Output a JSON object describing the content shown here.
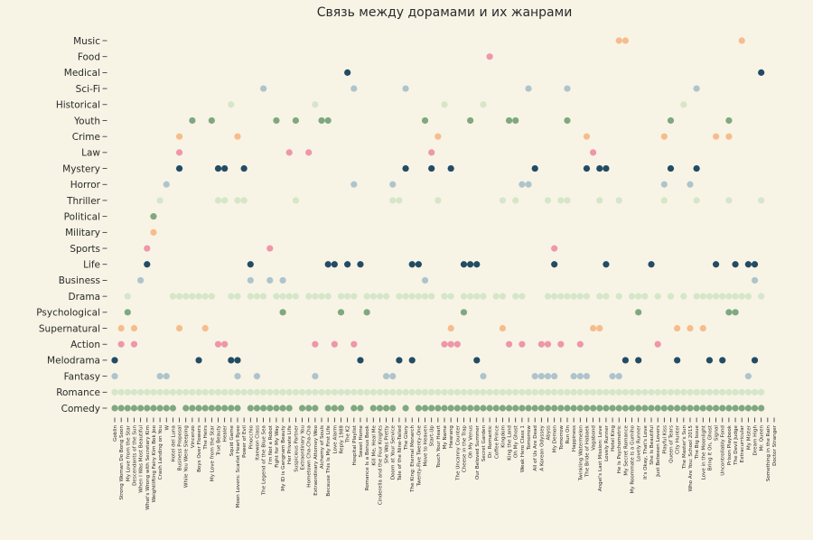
{
  "chart_data": {
    "type": "scatter",
    "title": "Связь между дорамами и их жанрами",
    "xlabel": "",
    "ylabel": "",
    "genres": [
      "Music",
      "Food",
      "Medical",
      "Sci-Fi",
      "Historical",
      "Youth",
      "Crime",
      "Law",
      "Mystery",
      "Horror",
      "Thriller",
      "Political",
      "Military",
      "Sports",
      "Life",
      "Business",
      "Drama",
      "Psychological",
      "Supernatural",
      "Action",
      "Melodrama",
      "Fantasy",
      "Romance",
      "Comedy"
    ],
    "colors": {
      "Music": "#f7bc8d",
      "Food": "#ef96a8",
      "Medical": "#234b64",
      "Sci-Fi": "#aec4cd",
      "Historical": "#d5e6c9",
      "Youth": "#80a880",
      "Crime": "#f7bc8d",
      "Law": "#ef96a8",
      "Mystery": "#234b64",
      "Horror": "#aec4cd",
      "Thriller": "#d5e6c9",
      "Political": "#80a880",
      "Military": "#f7bc8d",
      "Sports": "#ef96a8",
      "Life": "#234b64",
      "Business": "#aec4cd",
      "Drama": "#d5e6c9",
      "Psychological": "#80a880",
      "Supernatural": "#f7bc8d",
      "Action": "#ef96a8",
      "Melodrama": "#234b64",
      "Fantasy": "#aec4cd",
      "Romance": "#d5e6c9",
      "Comedy": "#80a880"
    },
    "dramas": [
      "Goblin",
      "Strong Woman Do Bong Soon",
      "My Love from the Star",
      "Descendants of the Sun",
      "When I Was Most Beautiful",
      "What's Wrong with Secretary Kim",
      "Weightlifting Fairy Kim Bok Joo",
      "Crash Landing on You",
      "W",
      "Hotel del Luna",
      "Business Proposal",
      "While You Were Sleeping",
      "Vincenzo",
      "Boys Over Flowers",
      "The Heirs",
      "My Love from the Star",
      "True Beauty",
      "Healer",
      "Squid Game",
      "Moon Lovers: Scarlet Heart Ryeo",
      "Power of Evil",
      "Pinocchio",
      "Itaewon Class",
      "The Legend of the Blue Sea",
      "I'm Not a Robot",
      "Fight for My Way",
      "My ID is Gangnam Beauty",
      "Her Private Life",
      "Suspicious Partner",
      "Extraordinary You",
      "Hometown Cha-Cha-Cha",
      "Extraordinary Attorney Woo",
      "Alchemy of Souls",
      "Because This Is My First Life",
      "Love Alarm",
      "Reply 1988",
      "The K2",
      "Hospital Playlist",
      "Sweet Home",
      "Romance Is a Bonus Book",
      "Kill Me, Heal Me",
      "Cinderella and the Four Knights",
      "She Was Pretty",
      "Doom at Your Service",
      "Tale of the Nine-Tailed",
      "The Glory",
      "The King: Eternal Monarch",
      "Twenty-Five Twenty-One",
      "Move to Heaven",
      "Start-Up",
      "Touch Your Heart",
      "My Name",
      "Hwarang",
      "The Uncanny Counter",
      "Cheese in the Trap",
      "Oh My Venus",
      "Our Beloved Summer",
      "Secret Garden",
      "Dr. Romantic",
      "Coffee Prince",
      "Kingdom",
      "King the Land",
      "Oh My Ghost",
      "Weak Hero Class 1",
      "Tomorrow",
      "All of Us Are Dead",
      "A Korean Odyssey",
      "Abyss",
      "My Demon",
      "Tomorrow",
      "Run On",
      "Happiness",
      "Twinkling Watermelon",
      "The Bride of Habaek",
      "Vagabond",
      "Angel's Last Mission: Love",
      "Lovely Runner",
      "Hotel King",
      "He Is Psychometric",
      "My Secret Romance",
      "My Roommate Is a Gumiho",
      "Lovely Runner",
      "It's Okay, That's Love",
      "She Is Beautiful",
      "Just Between Lovers",
      "Playful Kiss",
      "Queen of Tears",
      "City Hunter",
      "The Master's Sun",
      "Who Are You: School 2015",
      "The Big Issue",
      "Love in the Moonlight",
      "Bring It On, Ghost",
      "Signal",
      "Uncontrollably Fond",
      "Prison Playbook",
      "The Devil Judge",
      "Extracurricular",
      "My Mister",
      "Dream High",
      "Mr. Queen",
      "Something in the Rain",
      "Doctor Stranger"
    ],
    "points": {
      "Music": [
        78,
        79,
        97
      ],
      "Food": [
        58
      ],
      "Medical": [
        36,
        100
      ],
      "Sci-Fi": [
        23,
        37,
        45,
        64,
        70,
        90
      ],
      "Historical": [
        18,
        31,
        51,
        57,
        88
      ],
      "Youth": [
        12,
        15,
        25,
        28,
        32,
        33,
        48,
        55,
        61,
        62,
        70,
        86,
        95
      ],
      "Crime": [
        10,
        19,
        50,
        73,
        85,
        93,
        95
      ],
      "Law": [
        10,
        27,
        30,
        49,
        74
      ],
      "Mystery": [
        10,
        16,
        17,
        20,
        45,
        49,
        52,
        65,
        73,
        75,
        76,
        86,
        90
      ],
      "Horror": [
        8,
        37,
        43,
        63,
        64,
        85,
        89
      ],
      "Thriller": [
        7,
        16,
        17,
        19,
        20,
        28,
        43,
        44,
        50,
        60,
        62,
        67,
        69,
        70,
        75,
        78,
        85,
        90,
        95,
        100
      ],
      "Political": [
        6
      ],
      "Military": [
        6
      ],
      "Sports": [
        5,
        24,
        68
      ],
      "Life": [
        5,
        21,
        33,
        34,
        36,
        38,
        46,
        47,
        54,
        55,
        56,
        68,
        76,
        83,
        93,
        96,
        98,
        99
      ],
      "Business": [
        4,
        21,
        24,
        26,
        48,
        99
      ],
      "Drama": [
        2,
        9,
        10,
        11,
        12,
        13,
        14,
        15,
        18,
        19,
        21,
        22,
        23,
        25,
        26,
        27,
        28,
        30,
        31,
        32,
        33,
        35,
        36,
        37,
        39,
        40,
        41,
        42,
        44,
        45,
        46,
        47,
        48,
        49,
        51,
        52,
        54,
        55,
        56,
        57,
        59,
        60,
        62,
        63,
        67,
        68,
        69,
        70,
        71,
        72,
        73,
        75,
        76,
        78,
        80,
        81,
        82,
        84,
        86,
        88,
        90,
        91,
        92,
        93,
        94,
        95,
        96,
        97,
        98,
        100
      ],
      "Psychological": [
        2,
        26,
        35,
        39,
        54,
        81,
        95,
        96
      ],
      "Supernatural": [
        1,
        3,
        10,
        14,
        52,
        60,
        74,
        75,
        87,
        89,
        91
      ],
      "Action": [
        1,
        3,
        16,
        17,
        31,
        34,
        37,
        51,
        52,
        53,
        61,
        63,
        66,
        67,
        69,
        72,
        84
      ],
      "Melodrama": [
        0,
        13,
        18,
        19,
        38,
        44,
        46,
        56,
        79,
        81,
        87,
        92,
        94,
        99
      ],
      "Fantasy": [
        0,
        7,
        8,
        19,
        22,
        31,
        42,
        43,
        57,
        65,
        66,
        67,
        68,
        71,
        72,
        73,
        77,
        78,
        98
      ],
      "Romance": [
        0,
        1,
        2,
        3,
        4,
        5,
        6,
        7,
        8,
        9,
        10,
        11,
        12,
        13,
        14,
        15,
        16,
        17,
        18,
        19,
        20,
        21,
        22,
        23,
        24,
        25,
        26,
        27,
        28,
        29,
        30,
        31,
        32,
        33,
        34,
        35,
        36,
        37,
        38,
        39,
        40,
        41,
        42,
        43,
        44,
        45,
        46,
        47,
        48,
        49,
        50,
        51,
        52,
        53,
        54,
        55,
        56,
        57,
        58,
        59,
        60,
        61,
        62,
        63,
        64,
        65,
        66,
        67,
        68,
        69,
        70,
        71,
        72,
        73,
        74,
        75,
        76,
        77,
        78,
        79,
        80,
        81,
        82,
        83,
        84,
        85,
        86,
        87,
        88,
        89,
        90,
        91,
        92,
        93,
        94,
        95,
        96,
        97,
        98,
        99,
        100
      ],
      "Comedy": [
        0,
        1,
        2,
        3,
        4,
        5,
        6,
        7,
        8,
        9,
        11,
        12,
        13,
        14,
        15,
        16,
        17,
        18,
        19,
        21,
        22,
        23,
        24,
        25,
        26,
        27,
        29,
        30,
        31,
        33,
        34,
        35,
        37,
        38,
        40,
        41,
        42,
        43,
        45,
        47,
        48,
        49,
        50,
        51,
        52,
        53,
        54,
        55,
        56,
        57,
        58,
        59,
        60,
        61,
        62,
        63,
        64,
        65,
        66,
        67,
        68,
        69,
        70,
        71,
        72,
        73,
        74,
        75,
        76,
        77,
        78,
        79,
        80,
        81,
        82,
        83,
        84,
        85,
        86,
        87,
        88,
        89,
        90,
        91,
        92,
        93,
        94,
        95,
        96,
        97,
        98,
        99,
        100
      ]
    }
  }
}
